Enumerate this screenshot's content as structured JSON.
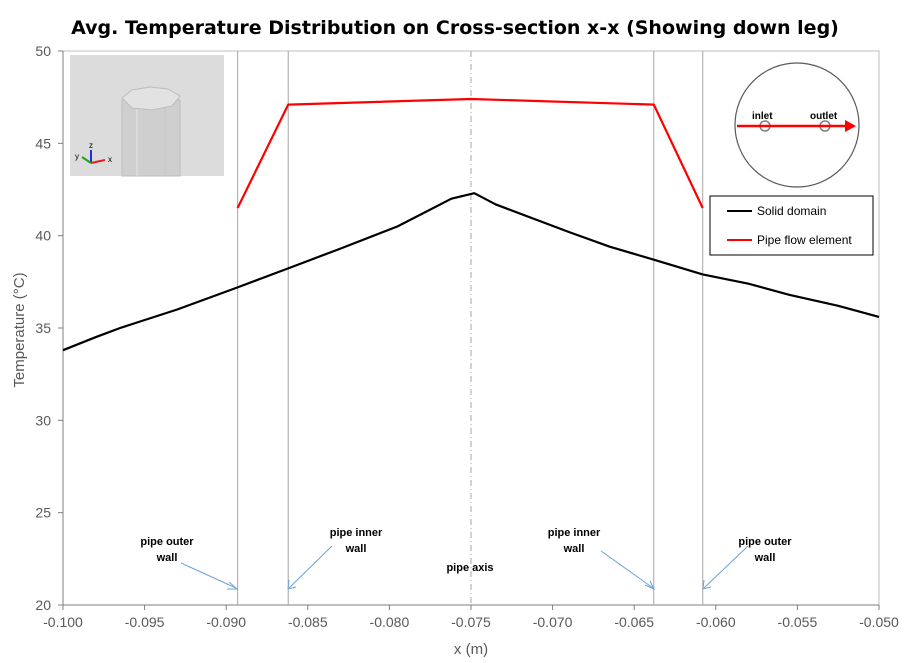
{
  "chart_data": {
    "type": "line",
    "title": "Avg. Temperature Distribution on Cross-section x-x (Showing down leg)",
    "xlabel": "x (m)",
    "ylabel": "Temperature (°C)",
    "xlim": [
      -0.1,
      -0.05
    ],
    "ylim": [
      20,
      50
    ],
    "x_ticks": [
      "-0.100",
      "-0.095",
      "-0.090",
      "-0.085",
      "-0.080",
      "-0.075",
      "-0.070",
      "-0.065",
      "-0.060",
      "-0.055",
      "-0.050"
    ],
    "y_ticks": [
      "20",
      "25",
      "30",
      "35",
      "40",
      "45",
      "50"
    ],
    "grid": false,
    "legend_position": "right",
    "series": [
      {
        "name": "Solid domain",
        "color": "#000000",
        "x": [
          -0.1,
          -0.098,
          -0.0965,
          -0.093,
          -0.0893,
          -0.086,
          -0.083,
          -0.0795,
          -0.0762,
          -0.0748,
          -0.0735,
          -0.069,
          -0.0665,
          -0.0638,
          -0.0608,
          -0.058,
          -0.0555,
          -0.0525,
          -0.05
        ],
        "y": [
          33.8,
          34.5,
          35.0,
          36.0,
          37.2,
          38.3,
          39.3,
          40.5,
          42.0,
          42.3,
          41.7,
          40.2,
          39.4,
          38.7,
          37.9,
          37.4,
          36.8,
          36.2,
          35.6
        ]
      },
      {
        "name": "Pipe flow element",
        "color": "#ff0000",
        "x": [
          -0.0893,
          -0.0862,
          -0.075,
          -0.0638,
          -0.0608
        ],
        "y": [
          41.5,
          47.1,
          47.4,
          47.1,
          41.5
        ]
      }
    ],
    "vertical_lines": [
      {
        "x": -0.0893,
        "style": "solid"
      },
      {
        "x": -0.0862,
        "style": "solid"
      },
      {
        "x": -0.075,
        "style": "dashdot"
      },
      {
        "x": -0.0638,
        "style": "solid"
      },
      {
        "x": -0.0608,
        "style": "solid"
      }
    ],
    "annotations": [
      {
        "line1": "pipe outer",
        "line2": "wall"
      },
      {
        "line1": "pipe inner",
        "line2": "wall"
      },
      {
        "line1": "pipe axis",
        "line2": ""
      },
      {
        "line1": "pipe inner",
        "line2": "wall"
      },
      {
        "line1": "pipe outer",
        "line2": "wall"
      }
    ],
    "inset_labels": {
      "inlet": "inlet",
      "outlet": "outlet"
    },
    "axis_triad": {
      "z": "z",
      "y": "y",
      "x": "x"
    }
  }
}
